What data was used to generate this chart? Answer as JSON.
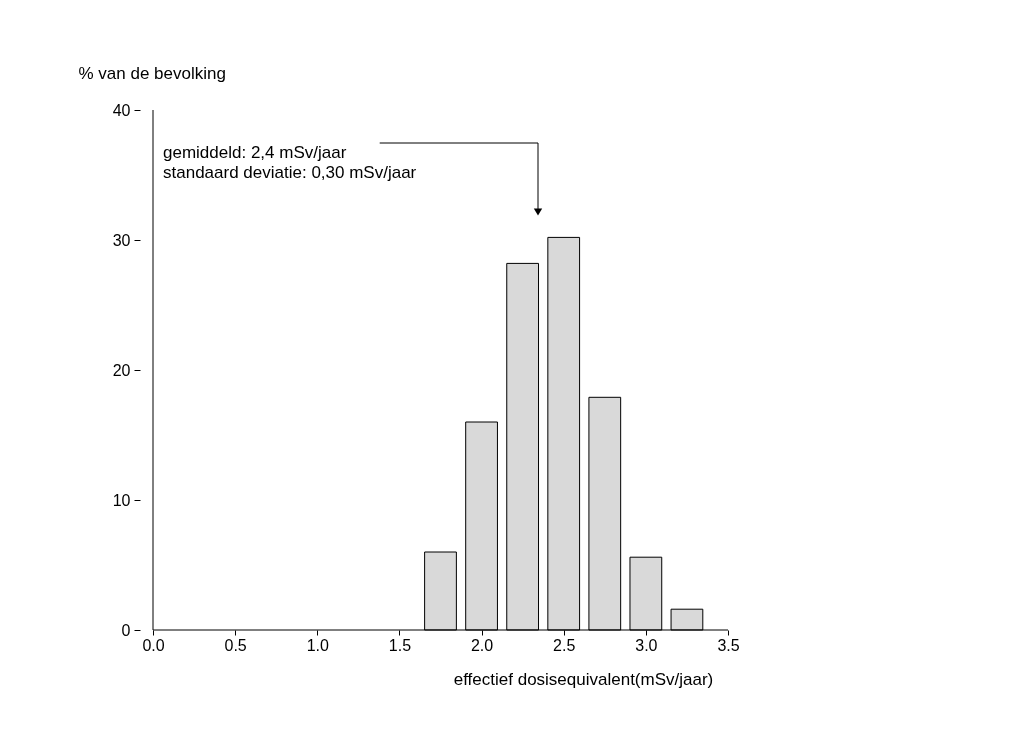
{
  "chart_data": {
    "type": "bar",
    "xlabel": "effectief dosisequivalent(mSv/jaar)",
    "ylabel": "% van de bevolking",
    "x": [
      1.75,
      2.0,
      2.25,
      2.5,
      2.75,
      3.0,
      3.25
    ],
    "values": [
      6.0,
      16.0,
      28.2,
      30.2,
      17.9,
      5.6,
      1.6
    ],
    "color": "#d9d9d9",
    "xlim": [
      0.0,
      3.5
    ],
    "xticks": [
      {
        "value": 0,
        "label": "0.0"
      },
      {
        "value": 0.5,
        "label": "0.5"
      },
      {
        "value": 1,
        "label": "1.0"
      },
      {
        "value": 1.5,
        "label": "1.5"
      },
      {
        "value": 2,
        "label": "2.0"
      },
      {
        "value": 2.5,
        "label": "2.5"
      },
      {
        "value": 3,
        "label": "3.0"
      },
      {
        "value": 3.5,
        "label": "3.5"
      }
    ],
    "ylim": [
      0,
      40
    ],
    "yticks": [
      0,
      10,
      20,
      30,
      40
    ],
    "grid": false,
    "annotations": [
      "gemiddeld: 2,4 mSv/jaar",
      "standaard deviatie: 0,30 mSv/jaar"
    ]
  }
}
